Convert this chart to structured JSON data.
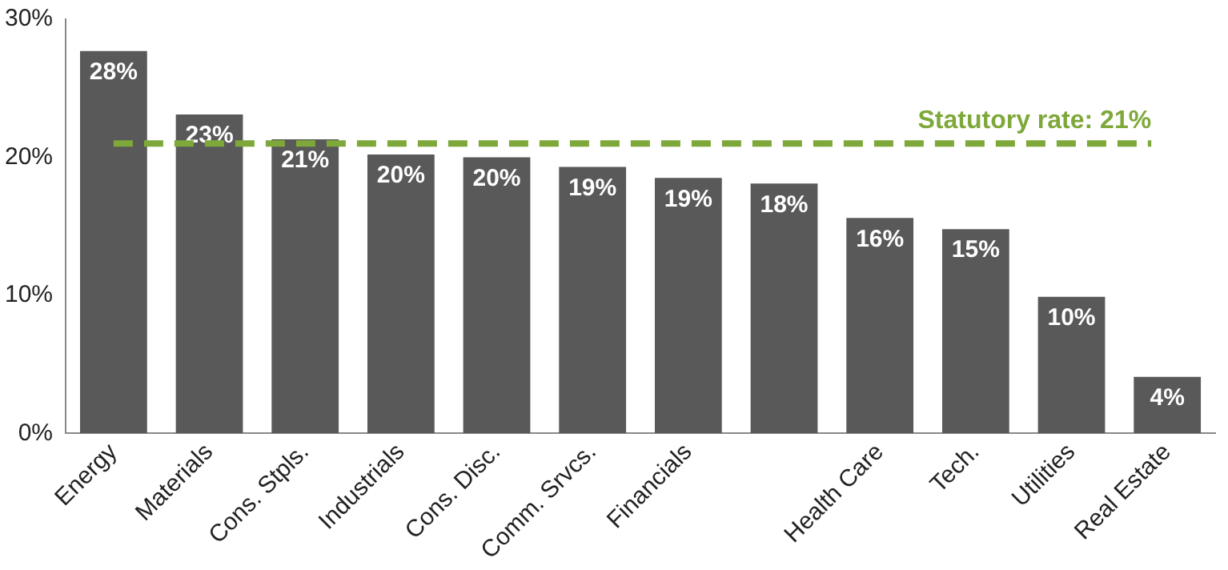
{
  "chart_data": {
    "type": "bar",
    "categories": [
      "Energy",
      "Materials",
      "Cons. Stpls.",
      "Industrials",
      "Cons. Disc.",
      "Comm. Srvcs.",
      "Financials",
      null,
      "Health Care",
      "Tech.",
      "Utilities",
      "Real Estate"
    ],
    "values": [
      27.7,
      23.1,
      21.3,
      20.2,
      20.0,
      19.3,
      18.5,
      18.1,
      15.6,
      14.8,
      9.9,
      4.1
    ],
    "value_labels": [
      "28%",
      "23%",
      "21%",
      "20%",
      "20%",
      "19%",
      "19%",
      "18%",
      "16%",
      "15%",
      "10%",
      "4%"
    ],
    "color": "#595959",
    "ylim": [
      0,
      30
    ],
    "yticks": [
      {
        "value": 0,
        "label": "0%"
      },
      {
        "value": 10,
        "label": "10%"
      },
      {
        "value": 20,
        "label": "20%"
      },
      {
        "value": 30,
        "label": "30%"
      }
    ],
    "ref_lines": [
      {
        "axis": "y",
        "value": 21,
        "label": "Statutory rate: 21%",
        "color": "#7ea83a",
        "line_style": "dashed"
      }
    ],
    "grid": false,
    "legend": false
  }
}
